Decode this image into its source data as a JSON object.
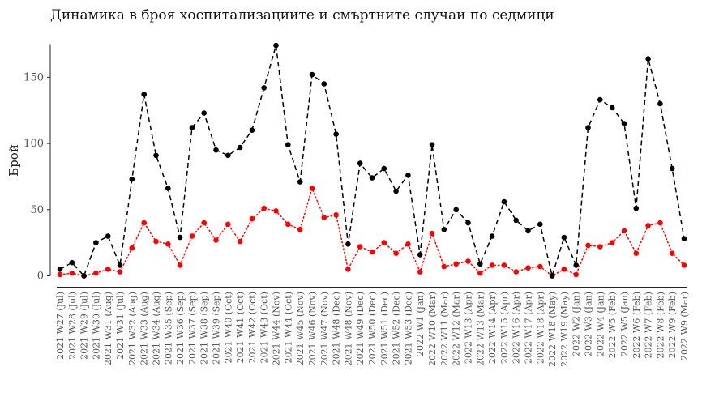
{
  "chart_data": {
    "type": "line",
    "title": "Динамика в броя хоспитализациите и смъртните случаи по седмици",
    "ylabel": "Брой",
    "xlabel": "",
    "ylim": [
      0,
      175
    ],
    "yticks": [
      0,
      50,
      100,
      150
    ],
    "grid": false,
    "colors": {
      "hospitalizations": "#000000",
      "deaths": "#ff0000"
    },
    "categories": [
      "2021 W27 (Jul)",
      "2021 W28 (Jul)",
      "2021 W29 (Jul)",
      "2021 W30 (Jul)",
      "2021 W31 (Aug)",
      "2021 W31 (Jul)",
      "2021 W32 (Aug)",
      "2021 W33 (Aug)",
      "2021 W34 (Aug)",
      "2021 W35 (Sep)",
      "2021 W36 (Sep)",
      "2021 W37 (Sep)",
      "2021 W38 (Sep)",
      "2021 W39 (Sep)",
      "2021 W40 (Oct)",
      "2021 W41 (Oct)",
      "2021 W42 (Oct)",
      "2021 W43 (Oct)",
      "2021 W44 (Nov)",
      "2021 W44 (Oct)",
      "2021 W45 (Nov)",
      "2021 W46 (Nov)",
      "2021 W47 (Nov)",
      "2021 W48 (Dec)",
      "2021 W48 (Nov)",
      "2021 W49 (Dec)",
      "2021 W50 (Dec)",
      "2021 W51 (Dec)",
      "2021 W52 (Dec)",
      "2021 W53 (Dec)",
      "2022 W1 (Jan)",
      "2022 W10 (Mar)",
      "2022 W11 (Mar)",
      "2022 W12 (Mar)",
      "2022 W13 (Apr)",
      "2022 W13 (Mar)",
      "2022 W14 (Apr)",
      "2022 W15 (Apr)",
      "2022 W16 (Apr)",
      "2022 W17 (Apr)",
      "2022 W18 (Apr)",
      "2022 W18 (May)",
      "2022 W19 (May)",
      "2022 W2 (Jan)",
      "2022 W3 (Jan)",
      "2022 W4 (Jan)",
      "2022 W5 (Feb)",
      "2022 W5 (Jan)",
      "2022 W6 (Feb)",
      "2022 W7 (Feb)",
      "2022 W8 (Feb)",
      "2022 W9 (Feb)",
      "2022 W9 (Mar)"
    ],
    "series": [
      {
        "key": "hospitalizations",
        "style": "dashed",
        "values": [
          5,
          10,
          0,
          25,
          30,
          8,
          73,
          137,
          91,
          66,
          29,
          112,
          123,
          95,
          91,
          97,
          110,
          142,
          174,
          99,
          71,
          152,
          145,
          107,
          24,
          85,
          74,
          81,
          64,
          76,
          16,
          99,
          35,
          50,
          40,
          9,
          30,
          56,
          42,
          34,
          39,
          0,
          29,
          8,
          112,
          133,
          127,
          115,
          51,
          164,
          130,
          81,
          28
        ]
      },
      {
        "key": "deaths",
        "style": "dotted",
        "values": [
          1,
          2,
          0,
          2,
          5,
          3,
          21,
          40,
          26,
          24,
          8,
          30,
          40,
          27,
          39,
          26,
          43,
          51,
          49,
          39,
          35,
          66,
          44,
          46,
          5,
          22,
          18,
          25,
          17,
          24,
          3,
          32,
          7,
          9,
          11,
          2,
          8,
          8,
          3,
          6,
          7,
          0,
          5,
          1,
          23,
          22,
          25,
          34,
          17,
          38,
          40,
          17,
          8
        ]
      }
    ]
  }
}
